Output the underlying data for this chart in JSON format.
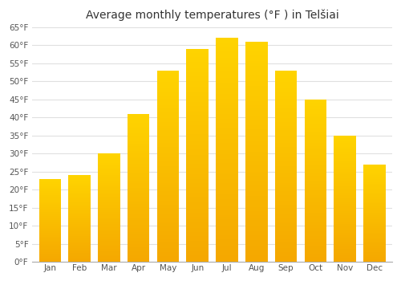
{
  "title": "Average monthly temperatures (°F ) in Telšiai",
  "months": [
    "Jan",
    "Feb",
    "Mar",
    "Apr",
    "May",
    "Jun",
    "Jul",
    "Aug",
    "Sep",
    "Oct",
    "Nov",
    "Dec"
  ],
  "values": [
    23,
    24,
    30,
    41,
    53,
    59,
    62,
    61,
    53,
    45,
    35,
    27
  ],
  "bar_color": "#FFC72C",
  "bar_color_bottom": "#F5A800",
  "ylim": [
    0,
    65
  ],
  "yticks": [
    0,
    5,
    10,
    15,
    20,
    25,
    30,
    35,
    40,
    45,
    50,
    55,
    60,
    65
  ],
  "ytick_labels": [
    "0°F",
    "5°F",
    "10°F",
    "15°F",
    "20°F",
    "25°F",
    "30°F",
    "35°F",
    "40°F",
    "45°F",
    "50°F",
    "55°F",
    "60°F",
    "65°F"
  ],
  "background_color": "#ffffff",
  "grid_color": "#e0e0e0",
  "title_fontsize": 10,
  "tick_fontsize": 7.5,
  "bar_width": 0.75
}
